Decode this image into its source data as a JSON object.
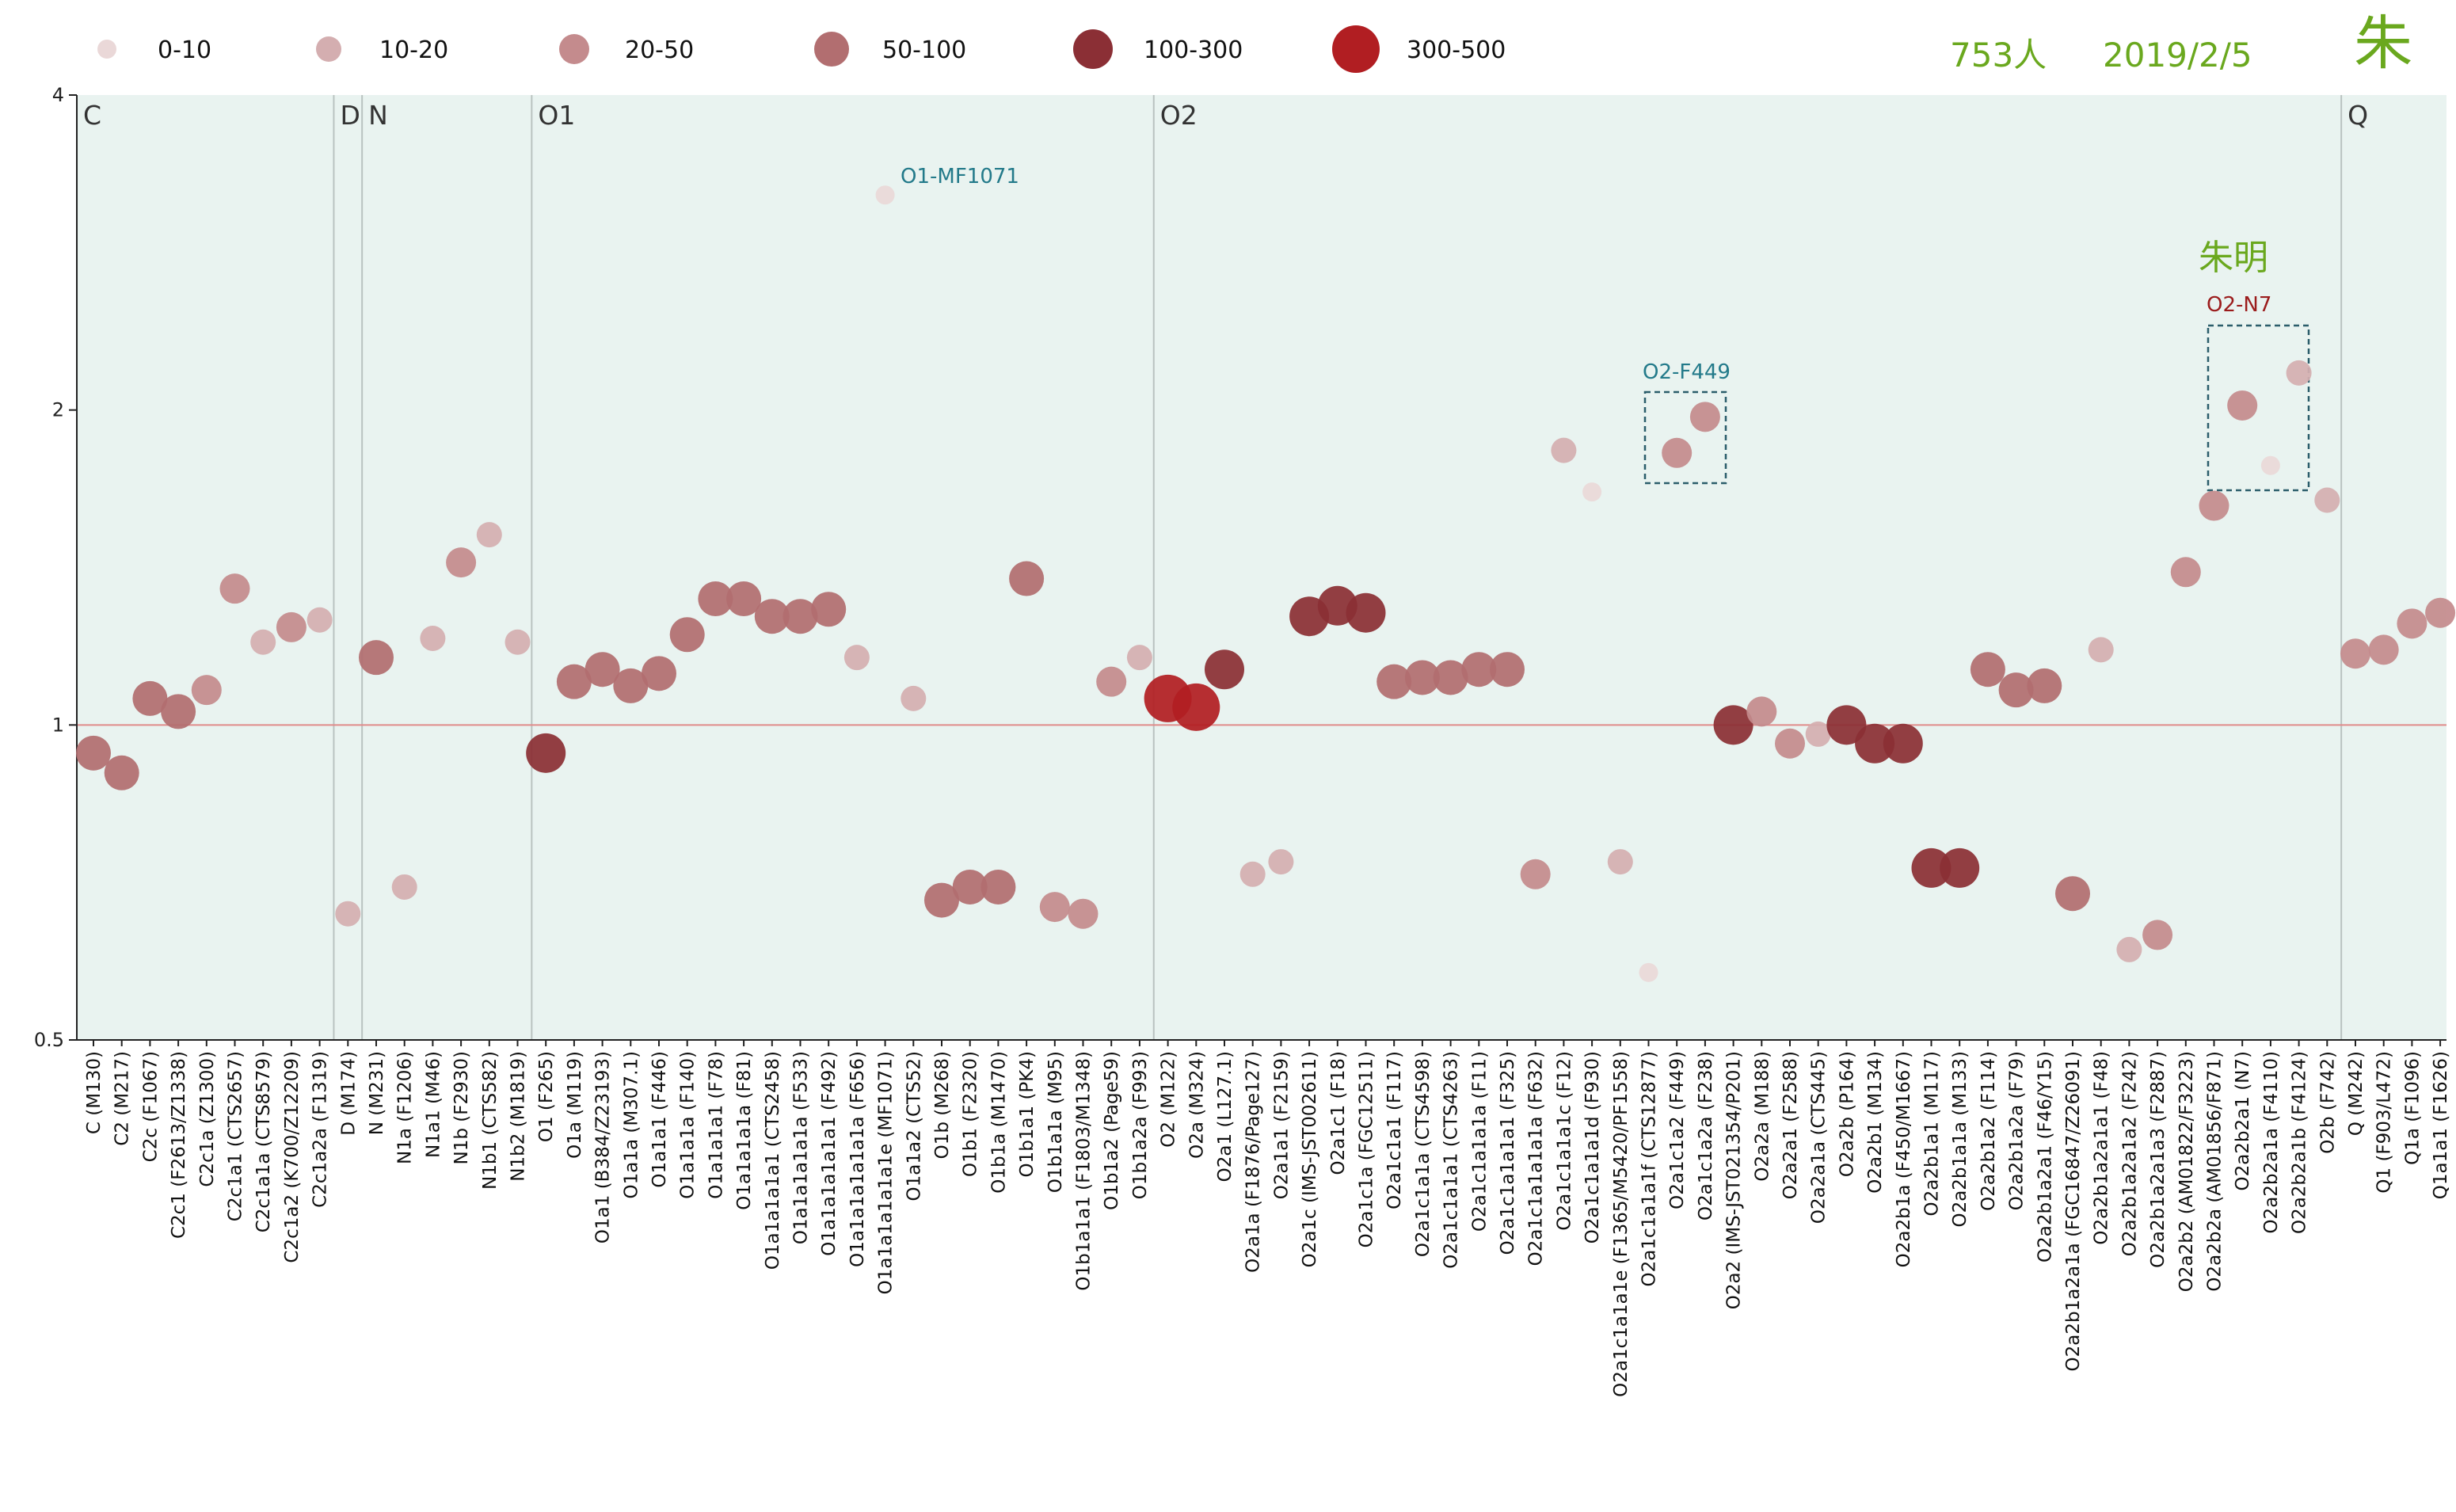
{
  "header": {
    "count": "753人",
    "date": "2019/2/5",
    "surname": "朱"
  },
  "legend": [
    {
      "label": "0-10",
      "color": "#ead8d8"
    },
    {
      "label": "10-20",
      "color": "#d4aeb0"
    },
    {
      "label": "20-50",
      "color": "#c48b8d"
    },
    {
      "label": "50-100",
      "color": "#b26e70"
    },
    {
      "label": "100-300",
      "color": "#8b2f35"
    },
    {
      "label": "300-500",
      "color": "#b11e22"
    }
  ],
  "colors": {
    "plot_background": "#e9f3f0",
    "reference_line": "#e08a8a",
    "group_divider": "#b9c2c0",
    "highlight_box": "#2b5d6b"
  },
  "annotations": {
    "mf1071": "O1-MF1071",
    "f449": "O2-F449",
    "n7": "O2-N7",
    "name": "朱明"
  },
  "chart_data": {
    "type": "scatter",
    "title": "",
    "xlabel": "",
    "ylabel": "",
    "y_scale": "log",
    "ylim": [
      0.5,
      4
    ],
    "y_ticks": [
      "4",
      "2",
      "1",
      "0.5"
    ],
    "reference_line_y": 1,
    "legend_position": "top",
    "groups": [
      {
        "label": "C",
        "start": "C (M130)"
      },
      {
        "label": "D",
        "start": "D (M174)"
      },
      {
        "label": "N",
        "start": "N (M231)"
      },
      {
        "label": "O1",
        "start": "O1 (F265)"
      },
      {
        "label": "O2",
        "start": "O2 (M122)"
      },
      {
        "label": "Q",
        "start": "Q (M242)"
      }
    ],
    "categories": [
      "C (M130)",
      "C2 (M217)",
      "C2c (F1067)",
      "C2c1 (F2613/Z1338)",
      "C2c1a (Z1300)",
      "C2c1a1 (CTS2657)",
      "C2c1a1a (CTS8579)",
      "C2c1a2 (K700/Z12209)",
      "C2c1a2a (F1319)",
      "D (M174)",
      "N (M231)",
      "N1a (F1206)",
      "N1a1 (M46)",
      "N1b (F2930)",
      "N1b1 (CTS582)",
      "N1b2 (M1819)",
      "O1 (F265)",
      "O1a (M119)",
      "O1a1 (B384/Z23193)",
      "O1a1a (M307.1)",
      "O1a1a1 (F446)",
      "O1a1a1a (F140)",
      "O1a1a1a1 (F78)",
      "O1a1a1a1a (F81)",
      "O1a1a1a1a1 (CTS2458)",
      "O1a1a1a1a1a (F533)",
      "O1a1a1a1a1a1 (F492)",
      "O1a1a1a1a1a1a (F656)",
      "O1a1a1a1a1a1e (MF1071)",
      "O1a1a2 (CTS52)",
      "O1b (M268)",
      "O1b1 (F2320)",
      "O1b1a (M1470)",
      "O1b1a1 (PK4)",
      "O1b1a1a (M95)",
      "O1b1a1a1 (F1803/M1348)",
      "O1b1a2 (Page59)",
      "O1b1a2a (F993)",
      "O2 (M122)",
      "O2a (M324)",
      "O2a1 (L127.1)",
      "O2a1a (F1876/Page127)",
      "O2a1a1 (F2159)",
      "O2a1c (IMS-JST002611)",
      "O2a1c1 (F18)",
      "O2a1c1a (FGC12511)",
      "O2a1c1a1 (F117)",
      "O2a1c1a1a (CTS4598)",
      "O2a1c1a1a1 (CTS4263)",
      "O2a1c1a1a1a (F11)",
      "O2a1c1a1a1a1 (F325)",
      "O2a1c1a1a1a1a (F632)",
      "O2a1c1a1a1c (F12)",
      "O2a1c1a1a1d (F930)",
      "O2a1c1a1a1e (F1365/M5420/PF1558)",
      "O2a1c1a1a1f (CTS12877)",
      "O2a1c1a2 (F449)",
      "O2a1c1a2a (F238)",
      "O2a2 (IMS-JST021354/P201)",
      "O2a2a (M188)",
      "O2a2a1 (F2588)",
      "O2a2a1a (CTS445)",
      "O2a2b (P164)",
      "O2a2b1 (M134)",
      "O2a2b1a (F450/M1667)",
      "O2a2b1a1 (M117)",
      "O2a2b1a1a (M133)",
      "O2a2b1a2 (F114)",
      "O2a2b1a2a (F79)",
      "O2a2b1a2a1 (F46/Y15)",
      "O2a2b1a2a1a (FGC16847/Z26091)",
      "O2a2b1a2a1a1 (F48)",
      "O2a2b1a2a1a2 (F242)",
      "O2a2b1a2a1a3 (F2887)",
      "O2a2b2 (AM01822/F3223)",
      "O2a2b2a (AM01856/F871)",
      "O2a2b2a1 (N7)",
      "O2a2b2a1a (F4110)",
      "O2a2b2a1b (F4124)",
      "O2b (F742)",
      "Q (M242)",
      "Q1 (F903/L472)",
      "Q1a (F1096)",
      "Q1a1a1 (F1626)"
    ],
    "y": [
      0.94,
      0.9,
      1.06,
      1.03,
      1.08,
      1.35,
      1.2,
      1.24,
      1.26,
      0.66,
      1.16,
      0.7,
      1.21,
      1.43,
      1.52,
      1.2,
      0.94,
      1.1,
      1.13,
      1.09,
      1.12,
      1.22,
      1.32,
      1.32,
      1.27,
      1.27,
      1.29,
      1.16,
      3.21,
      1.06,
      0.68,
      0.7,
      0.7,
      1.38,
      0.67,
      0.66,
      1.1,
      1.16,
      1.06,
      1.04,
      1.13,
      0.72,
      0.74,
      1.27,
      1.3,
      1.28,
      1.1,
      1.11,
      1.11,
      1.13,
      1.13,
      0.72,
      1.83,
      1.67,
      0.74,
      0.58,
      1.82,
      1.97,
      1.0,
      1.03,
      0.96,
      0.98,
      1.0,
      0.96,
      0.96,
      0.73,
      0.73,
      1.13,
      1.08,
      1.09,
      0.69,
      1.18,
      0.61,
      0.63,
      1.4,
      1.62,
      2.02,
      1.77,
      2.17,
      1.64,
      1.17,
      1.18,
      1.25,
      1.28
    ],
    "size_class": [
      3,
      3,
      3,
      3,
      2,
      2,
      1,
      2,
      1,
      1,
      3,
      1,
      1,
      2,
      1,
      1,
      4,
      3,
      3,
      3,
      3,
      3,
      3,
      3,
      3,
      3,
      3,
      1,
      0,
      1,
      3,
      3,
      3,
      3,
      2,
      2,
      2,
      1,
      5,
      5,
      4,
      1,
      1,
      4,
      4,
      4,
      3,
      3,
      3,
      3,
      3,
      2,
      1,
      0,
      1,
      0,
      2,
      2,
      4,
      2,
      2,
      1,
      4,
      4,
      4,
      4,
      4,
      3,
      3,
      3,
      3,
      1,
      1,
      2,
      2,
      2,
      2,
      0,
      1,
      1,
      2,
      2,
      2,
      2
    ]
  }
}
